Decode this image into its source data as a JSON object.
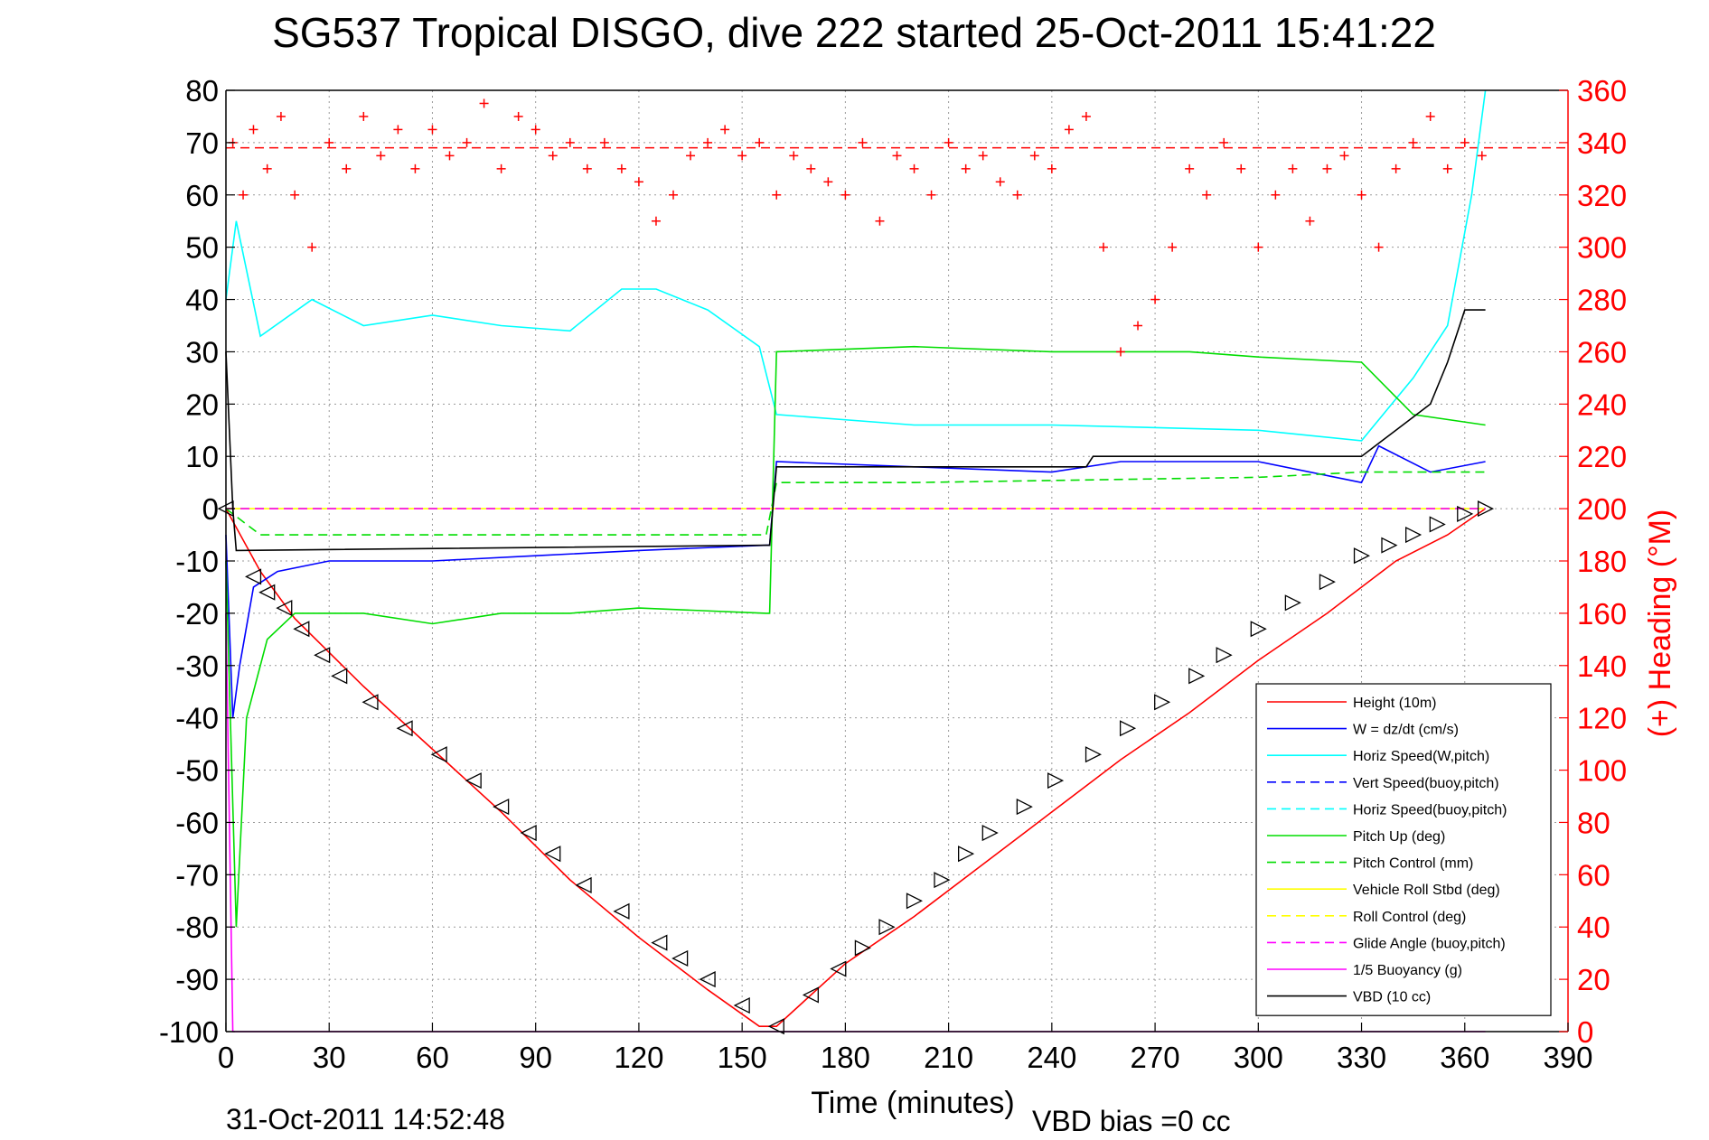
{
  "chart_data": {
    "type": "line",
    "title": "SG537 Tropical DISGO, dive 222 started 25-Oct-2011 15:41:22",
    "xlabel": "Time (minutes)",
    "ylabel": "",
    "y2label": "(+) Heading (°M)",
    "xlim": [
      0,
      390
    ],
    "ylim": [
      -100,
      80
    ],
    "y2lim": [
      0,
      360
    ],
    "x_ticks": [
      0,
      30,
      60,
      90,
      120,
      150,
      180,
      210,
      240,
      270,
      300,
      330,
      360,
      390
    ],
    "y_ticks": [
      -100,
      -90,
      -80,
      -70,
      -60,
      -50,
      -40,
      -30,
      -20,
      -10,
      0,
      10,
      20,
      30,
      40,
      50,
      60,
      70,
      80
    ],
    "y2_ticks": [
      0,
      20,
      40,
      60,
      80,
      100,
      120,
      140,
      160,
      180,
      200,
      220,
      240,
      260,
      280,
      300,
      320,
      340,
      360
    ],
    "grid": true,
    "legend_position": "bottom-right",
    "footer_left": "31-Oct-2011 14:52:48",
    "footer_right": "VBD bias =0 cc",
    "target_heading": 338,
    "series": [
      {
        "name": "Height (10m)",
        "color": "#ff0000",
        "style": "solid",
        "x": [
          0,
          10,
          20,
          40,
          60,
          80,
          100,
          120,
          140,
          155,
          160,
          180,
          200,
          220,
          240,
          260,
          280,
          300,
          320,
          340,
          355,
          366
        ],
        "y": [
          0,
          -12,
          -21,
          -34,
          -46,
          -58,
          -71,
          -82,
          -92,
          -99,
          -99,
          -87,
          -78,
          -68,
          -58,
          -48,
          -39,
          -29,
          -20,
          -10,
          -5,
          0
        ]
      },
      {
        "name": "W = dz/dt (cm/s)",
        "color": "#0000ff",
        "style": "solid",
        "x": [
          0,
          2,
          4,
          8,
          15,
          30,
          60,
          90,
          120,
          157,
          158,
          160,
          200,
          240,
          260,
          300,
          330,
          335,
          350,
          366
        ],
        "y": [
          -5,
          -40,
          -30,
          -15,
          -12,
          -10,
          -10,
          -9,
          -8,
          -7,
          -7,
          9,
          8,
          7,
          9,
          9,
          5,
          12,
          7,
          9
        ]
      },
      {
        "name": "Horiz Speed(W,pitch)",
        "color": "#00ffff",
        "style": "solid",
        "x": [
          0,
          3,
          10,
          25,
          40,
          60,
          80,
          100,
          115,
          125,
          140,
          155,
          160,
          200,
          240,
          300,
          330,
          345,
          355,
          362,
          366
        ],
        "y": [
          40,
          55,
          33,
          40,
          35,
          37,
          35,
          34,
          42,
          42,
          38,
          31,
          18,
          16,
          16,
          15,
          13,
          25,
          35,
          60,
          80
        ]
      },
      {
        "name": "Vert Speed(buoy,pitch)",
        "color": "#0000ff",
        "style": "dashed",
        "x": [
          0,
          160,
          161,
          366
        ],
        "y": [
          0,
          0,
          0,
          0
        ]
      },
      {
        "name": "Horiz Speed(buoy,pitch)",
        "color": "#00ffff",
        "style": "dashed",
        "x": [
          0,
          160,
          161,
          366
        ],
        "y": [
          0,
          0,
          0,
          0
        ]
      },
      {
        "name": "Pitch Up (deg)",
        "color": "#00dd00",
        "style": "solid",
        "x": [
          0,
          3,
          6,
          12,
          20,
          40,
          60,
          80,
          100,
          120,
          157,
          158,
          160,
          200,
          240,
          280,
          300,
          330,
          345,
          366
        ],
        "y": [
          -10,
          -80,
          -40,
          -25,
          -20,
          -20,
          -22,
          -20,
          -20,
          -19,
          -20,
          -20,
          30,
          31,
          30,
          30,
          29,
          28,
          18,
          16
        ]
      },
      {
        "name": "Pitch Control (mm)",
        "color": "#00dd00",
        "style": "dashed",
        "x": [
          0,
          10,
          157,
          160,
          200,
          300,
          330,
          366
        ],
        "y": [
          0,
          -5,
          -5,
          5,
          5,
          6,
          7,
          7
        ]
      },
      {
        "name": "Vehicle Roll Stbd (deg)",
        "color": "#ffff00",
        "style": "solid",
        "x": [
          0,
          10,
          60,
          120,
          158,
          160,
          200,
          260,
          330,
          366
        ],
        "y": [
          0,
          0,
          0,
          0,
          0,
          0,
          0,
          0,
          0,
          0
        ]
      },
      {
        "name": "Roll Control (deg)",
        "color": "#ffff00",
        "style": "dashed",
        "x": [
          0,
          366
        ],
        "y": [
          0,
          0
        ]
      },
      {
        "name": "Glide Angle (buoy,pitch)",
        "color": "#ff00ff",
        "style": "dashed",
        "x": [
          0,
          366
        ],
        "y": [
          0,
          0
        ]
      },
      {
        "name": "1/5 Buoyancy (g)",
        "color": "#ff00ff",
        "style": "solid",
        "x": [
          0,
          2,
          3,
          366
        ],
        "y": [
          -20,
          -100,
          -100,
          -100
        ]
      },
      {
        "name": "VBD (10 cc)",
        "color": "#000000",
        "style": "solid",
        "x": [
          0,
          2,
          3,
          157,
          158,
          160,
          250,
          252,
          330,
          340,
          350,
          355,
          360,
          366
        ],
        "y": [
          30,
          0,
          -8,
          -7,
          -7,
          8,
          8,
          10,
          10,
          15,
          20,
          28,
          38,
          38
        ]
      }
    ],
    "heading_series": {
      "color": "#ff0000",
      "marker": "+",
      "x": [
        2,
        5,
        8,
        12,
        16,
        20,
        25,
        30,
        35,
        40,
        45,
        50,
        55,
        60,
        65,
        70,
        75,
        80,
        85,
        90,
        95,
        100,
        105,
        110,
        115,
        120,
        125,
        130,
        135,
        140,
        145,
        150,
        155,
        160,
        165,
        170,
        175,
        180,
        185,
        190,
        195,
        200,
        205,
        210,
        215,
        220,
        225,
        230,
        235,
        240,
        245,
        250,
        255,
        260,
        265,
        270,
        275,
        280,
        285,
        290,
        295,
        300,
        305,
        310,
        315,
        320,
        325,
        330,
        335,
        340,
        345,
        350,
        355,
        360,
        365
      ],
      "y": [
        340,
        320,
        345,
        330,
        350,
        320,
        300,
        340,
        330,
        350,
        335,
        345,
        330,
        345,
        335,
        340,
        355,
        330,
        350,
        345,
        335,
        340,
        330,
        340,
        330,
        325,
        310,
        320,
        335,
        340,
        345,
        335,
        340,
        320,
        335,
        330,
        325,
        320,
        340,
        310,
        335,
        330,
        320,
        340,
        330,
        335,
        325,
        320,
        335,
        330,
        345,
        350,
        300,
        260,
        270,
        280,
        300,
        330,
        320,
        340,
        330,
        300,
        320,
        330,
        310,
        330,
        335,
        320,
        300,
        330,
        340,
        350,
        330,
        340,
        335
      ]
    },
    "markers": {
      "x": [
        0,
        8,
        12,
        17,
        22,
        28,
        33,
        42,
        52,
        62,
        72,
        80,
        88,
        95,
        104,
        115,
        126,
        132,
        140,
        150,
        160,
        170,
        178,
        185,
        192,
        200,
        208,
        215,
        222,
        232,
        241,
        252,
        262,
        272,
        282,
        290,
        300,
        310,
        320,
        330,
        338,
        345,
        352,
        360,
        366
      ],
      "y": [
        0,
        -13,
        -16,
        -19,
        -23,
        -28,
        -32,
        -37,
        -42,
        -47,
        -52,
        -57,
        -62,
        -66,
        -72,
        -77,
        -83,
        -86,
        -90,
        -95,
        -99,
        -93,
        -88,
        -84,
        -80,
        -75,
        -71,
        -66,
        -62,
        -57,
        -52,
        -47,
        -42,
        -37,
        -32,
        -28,
        -23,
        -18,
        -14,
        -9,
        -7,
        -5,
        -3,
        -1,
        0
      ]
    }
  }
}
